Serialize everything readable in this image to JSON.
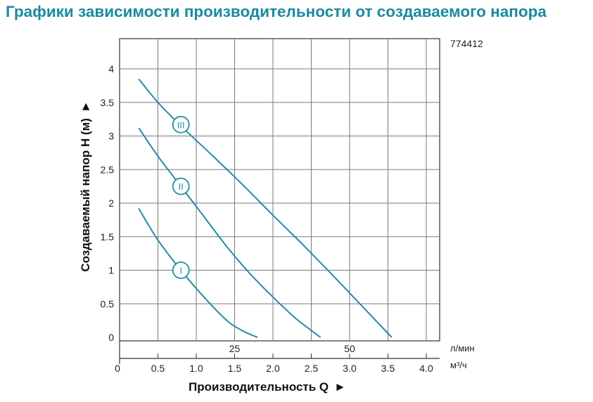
{
  "title": "Графики зависимости производительности от создаваемого напора",
  "model": "774412",
  "chart_data": {
    "type": "line",
    "title": "Графики зависимости производительности от создаваемого напора",
    "ylabel": "Создаваемый напор H (м)",
    "xlabel": "Производительность Q",
    "arrow": "►",
    "ylim": [
      0,
      4.5
    ],
    "xlim": [
      0,
      4.25
    ],
    "yticks": [
      "0",
      "0.5",
      "1",
      "1.5",
      "2",
      "2.5",
      "3",
      "3.5",
      "4"
    ],
    "yvals": [
      0,
      0.5,
      1,
      1.5,
      2,
      2.5,
      3,
      3.5,
      4
    ],
    "xticks_m3h": [
      "0",
      "0.5",
      "1.0",
      "1.5",
      "2.0",
      "2.5",
      "3.0",
      "3.5",
      "4.0"
    ],
    "xvals_m3h": [
      0,
      0.5,
      1,
      1.5,
      2,
      2.5,
      3,
      3.5,
      4
    ],
    "xticks_lmin": [
      "25",
      "50"
    ],
    "xvals_lmin_m3h": [
      1.5,
      3.0
    ],
    "unit_lmin": "л/мин",
    "unit_m3h": "м³/ч",
    "grid": true,
    "curve_color": "#1f8fa3",
    "series": [
      {
        "name": "III",
        "label_at": [
          0.8,
          3.17
        ],
        "x": [
          0.25,
          0.5,
          0.8,
          1.2,
          1.6,
          2.0,
          2.4,
          2.8,
          3.2,
          3.55
        ],
        "y": [
          3.85,
          3.5,
          3.15,
          2.72,
          2.28,
          1.82,
          1.37,
          0.9,
          0.42,
          0.0
        ]
      },
      {
        "name": "II",
        "label_at": [
          0.8,
          2.25
        ],
        "x": [
          0.25,
          0.5,
          0.8,
          1.1,
          1.4,
          1.7,
          2.0,
          2.3,
          2.62
        ],
        "y": [
          3.12,
          2.7,
          2.25,
          1.8,
          1.35,
          0.95,
          0.6,
          0.28,
          0.0
        ]
      },
      {
        "name": "I",
        "label_at": [
          0.8,
          1.0
        ],
        "x": [
          0.25,
          0.5,
          0.8,
          1.1,
          1.4,
          1.6,
          1.8
        ],
        "y": [
          1.92,
          1.45,
          1.0,
          0.6,
          0.25,
          0.1,
          0.0
        ]
      }
    ]
  }
}
